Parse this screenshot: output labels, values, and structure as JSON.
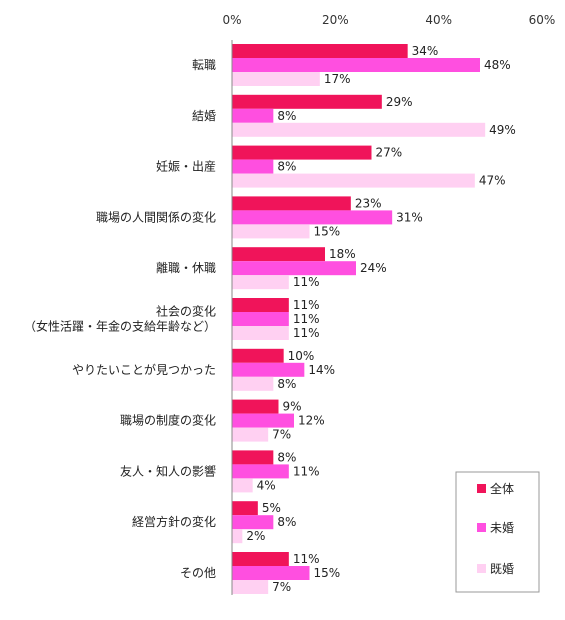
{
  "chart_data": {
    "type": "bar",
    "orientation": "horizontal",
    "x_ticks": [
      "0%",
      "20%",
      "40%",
      "60%"
    ],
    "xlim": [
      0,
      60
    ],
    "grid": false,
    "legend_position": "bottom-right",
    "categories": [
      "転職",
      "結婚",
      "妊娠・出産",
      "職場の人間関係の変化",
      "離職・休職",
      "社会の変化\n（女性活躍・年金の支給年齢など）",
      "やりたいことが見つかった",
      "職場の制度の変化",
      "友人・知人の影響",
      "経営方針の変化",
      "その他"
    ],
    "series": [
      {
        "name": "全体",
        "color": "#f0145a",
        "values": [
          34,
          29,
          27,
          23,
          18,
          11,
          10,
          9,
          8,
          5,
          11
        ]
      },
      {
        "name": "未婚",
        "color": "#ff4fe0",
        "values": [
          48,
          8,
          8,
          31,
          24,
          11,
          14,
          12,
          11,
          8,
          15
        ]
      },
      {
        "name": "既婚",
        "color": "#ffd0f2",
        "values": [
          17,
          49,
          47,
          15,
          11,
          11,
          8,
          7,
          4,
          2,
          7
        ]
      }
    ],
    "value_suffix": "%"
  }
}
